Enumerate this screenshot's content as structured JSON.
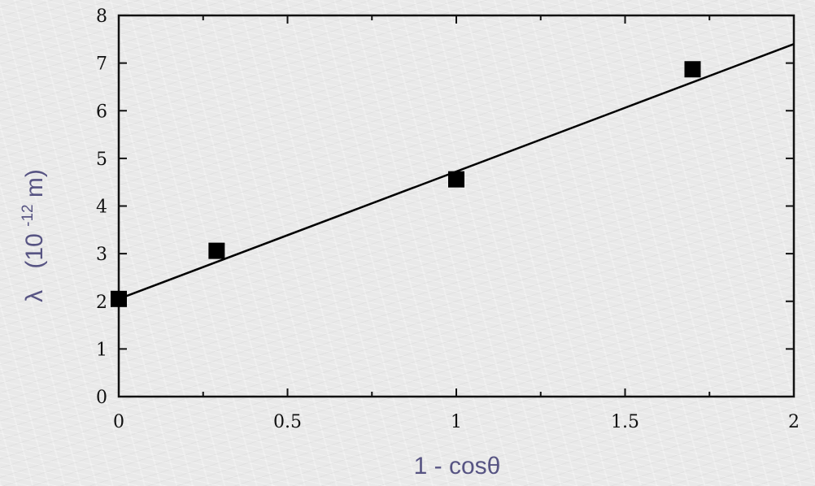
{
  "chart_data": {
    "type": "scatter",
    "title": "",
    "xlabel": "1 - cosθ",
    "ylabel": {
      "symbol": "λ",
      "base": "(10",
      "exponent": "-12",
      "unit": " m)"
    },
    "xlim": [
      0,
      2
    ],
    "ylim": [
      0,
      8
    ],
    "x_ticks": [
      0,
      0.5,
      1,
      1.5,
      2
    ],
    "x_tick_labels": [
      "0",
      "0.5",
      "1",
      "1.5",
      "2"
    ],
    "y_ticks": [
      0,
      1,
      2,
      3,
      4,
      5,
      6,
      7,
      8
    ],
    "y_tick_labels": [
      "0",
      "1",
      "2",
      "3",
      "4",
      "5",
      "6",
      "7",
      "8"
    ],
    "x_minor_step": 0.25,
    "grid": false,
    "series": [
      {
        "points": [
          {
            "x": 0.0,
            "y": 2.05
          },
          {
            "x": 0.29,
            "y": 3.06
          },
          {
            "x": 1.0,
            "y": 4.56
          },
          {
            "x": 1.7,
            "y": 6.87
          }
        ],
        "marker": "filled-square",
        "color": "#000000"
      }
    ],
    "fit_line": {
      "type": "linear",
      "points": [
        {
          "x": 0.0,
          "y": 2.05
        },
        {
          "x": 2.0,
          "y": 7.4
        }
      ],
      "color": "#000000"
    },
    "colors": {
      "axis_title": "#575483",
      "ink": "#111111"
    }
  }
}
